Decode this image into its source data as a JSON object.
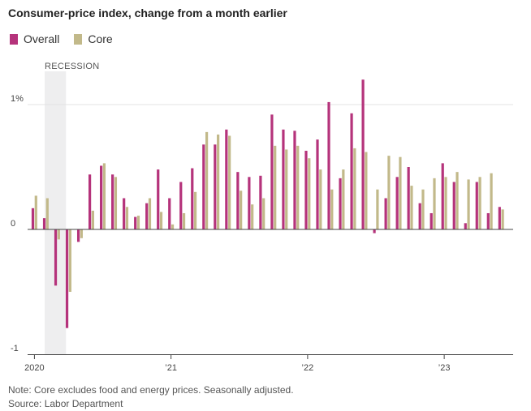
{
  "title": "Consumer-price index, change from a month earlier",
  "footer": {
    "note": "Note: Core excludes food and energy prices. Seasonally adjusted.",
    "source": "Source: Labor Department"
  },
  "colors": {
    "overall": "#b5337b",
    "core": "#c2b98a",
    "recession": "#eeeeef"
  },
  "chart_data": {
    "type": "bar",
    "title": "Consumer-price index, change from a month earlier",
    "xlabel": "",
    "ylabel": "",
    "ylim": [
      -1.0,
      1.2
    ],
    "y_ticks": [
      {
        "value": 1,
        "label": "1%"
      },
      {
        "value": 0,
        "label": "0"
      },
      {
        "value": -1,
        "label": "-1"
      }
    ],
    "x_ticks": [
      {
        "index": 0,
        "label": "2020"
      },
      {
        "index": 12,
        "label": "’21"
      },
      {
        "index": 24,
        "label": "’22"
      },
      {
        "index": 36,
        "label": "’23"
      }
    ],
    "recession": {
      "label": "RECESSION",
      "start_index": 1,
      "end_index": 3
    },
    "categories": [
      "Jan 2020",
      "Feb 2020",
      "Mar 2020",
      "Apr 2020",
      "May 2020",
      "Jun 2020",
      "Jul 2020",
      "Aug 2020",
      "Sep 2020",
      "Oct 2020",
      "Nov 2020",
      "Dec 2020",
      "Jan 2021",
      "Feb 2021",
      "Mar 2021",
      "Apr 2021",
      "May 2021",
      "Jun 2021",
      "Jul 2021",
      "Aug 2021",
      "Sep 2021",
      "Oct 2021",
      "Nov 2021",
      "Dec 2021",
      "Jan 2022",
      "Feb 2022",
      "Mar 2022",
      "Apr 2022",
      "May 2022",
      "Jun 2022",
      "Jul 2022",
      "Aug 2022",
      "Sep 2022",
      "Oct 2022",
      "Nov 2022",
      "Dec 2022",
      "Jan 2023",
      "Feb 2023",
      "Mar 2023",
      "Apr 2023",
      "May 2023",
      "Jun 2023"
    ],
    "series": [
      {
        "name": "Overall",
        "values": [
          0.17,
          0.09,
          -0.45,
          -0.79,
          -0.1,
          0.44,
          0.51,
          0.44,
          0.25,
          0.1,
          0.21,
          0.48,
          0.25,
          0.38,
          0.49,
          0.68,
          0.68,
          0.8,
          0.46,
          0.42,
          0.43,
          0.92,
          0.8,
          0.79,
          0.63,
          0.72,
          1.02,
          0.41,
          0.93,
          1.2,
          -0.03,
          0.25,
          0.42,
          0.5,
          0.21,
          0.13,
          0.53,
          0.38,
          0.05,
          0.38,
          0.13,
          0.18
        ]
      },
      {
        "name": "Core",
        "values": [
          0.27,
          0.25,
          -0.08,
          -0.5,
          -0.07,
          0.15,
          0.53,
          0.42,
          0.18,
          0.11,
          0.25,
          0.14,
          0.04,
          0.13,
          0.3,
          0.78,
          0.76,
          0.75,
          0.31,
          0.2,
          0.25,
          0.67,
          0.64,
          0.67,
          0.57,
          0.48,
          0.32,
          0.48,
          0.65,
          0.62,
          0.32,
          0.59,
          0.58,
          0.35,
          0.32,
          0.41,
          0.42,
          0.46,
          0.4,
          0.42,
          0.45,
          0.16
        ]
      }
    ]
  }
}
